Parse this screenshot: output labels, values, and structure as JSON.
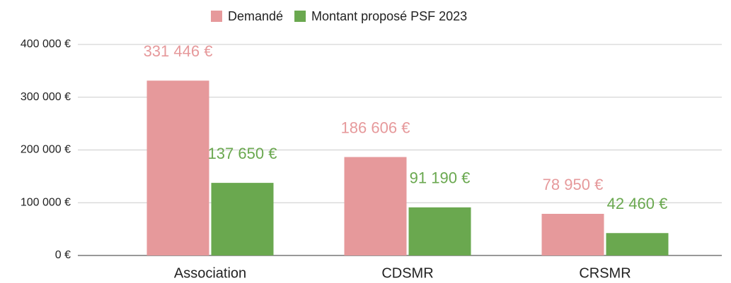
{
  "chart_data": {
    "type": "bar",
    "categories": [
      "Association",
      "CDSMR",
      "CRSMR"
    ],
    "series": [
      {
        "name": "Demandé",
        "color": "#e6999b",
        "values": [
          331446,
          186606,
          78950
        ],
        "value_labels": [
          "331 446 €",
          "186 606 €",
          "78 950 €"
        ]
      },
      {
        "name": "Montant proposé PSF 2023",
        "color": "#6aa84f",
        "values": [
          137650,
          91190,
          42460
        ],
        "value_labels": [
          "137 650 €",
          "91 190 €",
          "42 460 €"
        ]
      }
    ],
    "ylim": [
      0,
      400000
    ],
    "yticks": [
      {
        "value": 0,
        "label": "0 €"
      },
      {
        "value": 100000,
        "label": "100 000 €"
      },
      {
        "value": 200000,
        "label": "200 000 €"
      },
      {
        "value": 300000,
        "label": "300 000 €"
      },
      {
        "value": 400000,
        "label": "400 000 €"
      }
    ],
    "grid": true,
    "legend": "top"
  }
}
